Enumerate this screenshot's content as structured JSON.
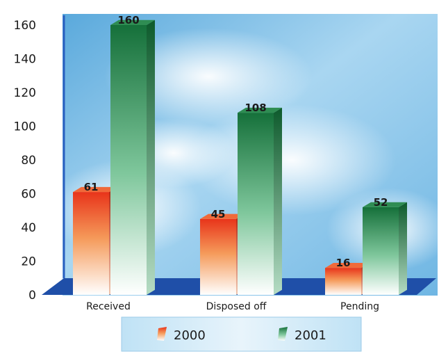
{
  "chart_data": {
    "type": "bar",
    "title": "",
    "xlabel": "",
    "ylabel": "",
    "categories": [
      "Received",
      "Disposed off",
      "Pending"
    ],
    "series": [
      {
        "name": "2000",
        "values": [
          61,
          45,
          16
        ],
        "color": "#e8401c"
      },
      {
        "name": "2001",
        "values": [
          160,
          108,
          52
        ],
        "color": "#1e7a3c"
      }
    ],
    "ylim": [
      0,
      160
    ],
    "yticks": [
      0,
      20,
      40,
      60,
      80,
      100,
      120,
      140,
      160
    ],
    "grid": false,
    "legend": "bottom",
    "style": "3d",
    "colors": {
      "sky": "#7fc0e6",
      "floor": "#1f4fa8",
      "axis": "#2a5fbf"
    }
  }
}
